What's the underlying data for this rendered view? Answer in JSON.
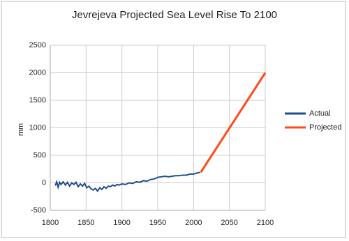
{
  "chart_data": {
    "type": "line",
    "title": "Jevrejeva Projected Sea Level Rise To 2100",
    "y_label": "mm",
    "xlim": [
      1800,
      2100
    ],
    "xticks": [
      1800,
      1850,
      1900,
      1950,
      2000,
      2050,
      2100
    ],
    "ylim": [
      -500,
      2500
    ],
    "yticks": [
      -500,
      0,
      500,
      1000,
      1500,
      2000,
      2500
    ],
    "grid": true,
    "legend": "right",
    "series": [
      {
        "name": "Actual",
        "color": "#1f4e8c",
        "x": [
          1807,
          1809,
          1811,
          1813,
          1815,
          1818,
          1821,
          1824,
          1827,
          1830,
          1833,
          1836,
          1839,
          1842,
          1845,
          1848,
          1851,
          1854,
          1857,
          1860,
          1863,
          1866,
          1869,
          1872,
          1875,
          1878,
          1881,
          1884,
          1887,
          1890,
          1893,
          1896,
          1900,
          1905,
          1910,
          1915,
          1920,
          1925,
          1930,
          1935,
          1940,
          1945,
          1950,
          1955,
          1960,
          1965,
          1970,
          1975,
          1980,
          1985,
          1990,
          1995,
          2000,
          2005,
          2009
        ],
        "values": [
          -50,
          20,
          -80,
          10,
          -30,
          20,
          -40,
          10,
          -60,
          0,
          -30,
          10,
          -70,
          -20,
          -60,
          -10,
          -90,
          -60,
          -110,
          -130,
          -100,
          -150,
          -90,
          -120,
          -70,
          -100,
          -60,
          -70,
          -40,
          -60,
          -30,
          -40,
          -20,
          -30,
          0,
          -10,
          20,
          10,
          40,
          30,
          60,
          70,
          100,
          110,
          120,
          110,
          120,
          130,
          130,
          140,
          140,
          160,
          160,
          180,
          190
        ]
      },
      {
        "name": "Projected",
        "color": "#ff4b1a",
        "x": [
          2010,
          2100
        ],
        "values": [
          190,
          2000
        ]
      }
    ]
  }
}
